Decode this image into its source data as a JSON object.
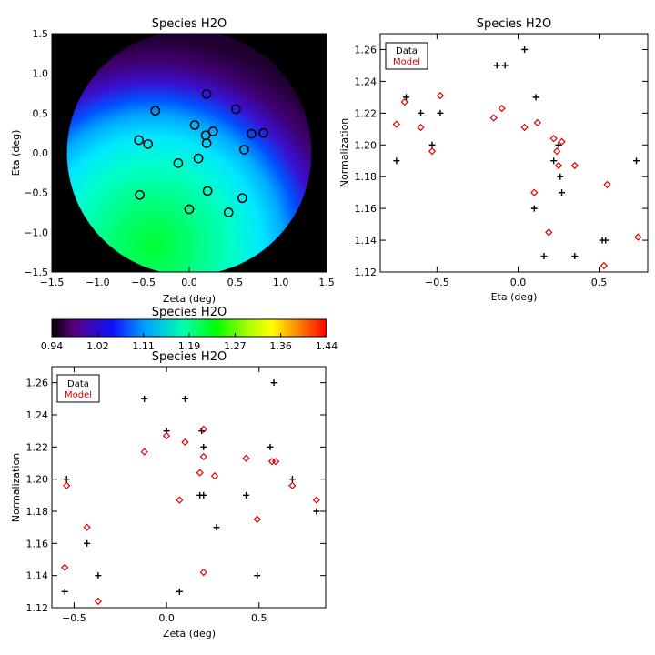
{
  "chart_data": [
    {
      "id": "map",
      "type": "heatmap",
      "title": "Species H2O",
      "xlabel": "Zeta (deg)",
      "ylabel": "Eta (deg)",
      "xlim": [
        -1.5,
        1.5
      ],
      "ylim": [
        -1.5,
        1.5
      ],
      "xticks": [
        -1.5,
        -1.0,
        -0.5,
        0.0,
        0.5,
        1.0,
        1.5
      ],
      "xtick_labels": [
        "−1.5",
        "−1.0",
        "−0.5",
        "0.0",
        "0.5",
        "1.0",
        "1.5"
      ],
      "yticks": [
        -1.5,
        -1.0,
        -0.5,
        0.0,
        0.5,
        1.0,
        1.5
      ],
      "ytick_labels": [
        "−1.5",
        "−1.0",
        "−0.5",
        "0.0",
        "0.5",
        "1.0",
        "1.5"
      ],
      "field_circle_radius": 1.43,
      "points": [
        {
          "x": 0.19,
          "y": 0.74
        },
        {
          "x": -0.37,
          "y": 0.53
        },
        {
          "x": 0.51,
          "y": 0.55
        },
        {
          "x": 0.06,
          "y": 0.35
        },
        {
          "x": 0.26,
          "y": 0.27
        },
        {
          "x": 0.18,
          "y": 0.22
        },
        {
          "x": 0.68,
          "y": 0.24
        },
        {
          "x": 0.81,
          "y": 0.25
        },
        {
          "x": -0.55,
          "y": 0.16
        },
        {
          "x": -0.45,
          "y": 0.11
        },
        {
          "x": 0.19,
          "y": 0.12
        },
        {
          "x": 0.6,
          "y": 0.04
        },
        {
          "x": 0.1,
          "y": -0.07
        },
        {
          "x": -0.12,
          "y": -0.13
        },
        {
          "x": -0.54,
          "y": -0.53
        },
        {
          "x": 0.2,
          "y": -0.48
        },
        {
          "x": 0.58,
          "y": -0.57
        },
        {
          "x": 0.0,
          "y": -0.71
        },
        {
          "x": 0.43,
          "y": -0.75
        }
      ]
    },
    {
      "id": "colorbar",
      "type": "colorbar",
      "title": "Species H2O",
      "range": [
        0.94,
        1.44
      ],
      "tick_labels": [
        "0.94",
        "1.02",
        "1.11",
        "1.19",
        "1.27",
        "1.36",
        "1.44"
      ]
    },
    {
      "id": "eta_plot",
      "type": "scatter",
      "title": "Species H2O",
      "xlabel": "Eta (deg)",
      "ylabel": "Normalization",
      "xlim": [
        -0.85,
        0.8
      ],
      "ylim": [
        1.12,
        1.27
      ],
      "xticks": [
        -0.5,
        0.0,
        0.5
      ],
      "xtick_labels": [
        "−0.5",
        "0.0",
        "0.5"
      ],
      "yticks": [
        1.12,
        1.14,
        1.16,
        1.18,
        1.2,
        1.22,
        1.24,
        1.26
      ],
      "ytick_labels": [
        "1.12",
        "1.14",
        "1.16",
        "1.18",
        "1.20",
        "1.22",
        "1.24",
        "1.26"
      ],
      "legend": [
        "Data",
        "Model"
      ],
      "data": [
        {
          "x": 0.04,
          "y": 1.26
        },
        {
          "x": -0.13,
          "y": 1.25
        },
        {
          "x": -0.08,
          "y": 1.25
        },
        {
          "x": -0.69,
          "y": 1.23
        },
        {
          "x": 0.11,
          "y": 1.23
        },
        {
          "x": -0.6,
          "y": 1.22
        },
        {
          "x": -0.48,
          "y": 1.22
        },
        {
          "x": 0.25,
          "y": 1.2
        },
        {
          "x": -0.53,
          "y": 1.2
        },
        {
          "x": 0.22,
          "y": 1.19
        },
        {
          "x": -0.75,
          "y": 1.19
        },
        {
          "x": 0.73,
          "y": 1.19
        },
        {
          "x": 0.26,
          "y": 1.18
        },
        {
          "x": 0.27,
          "y": 1.17
        },
        {
          "x": 0.1,
          "y": 1.16
        },
        {
          "x": 0.52,
          "y": 1.14
        },
        {
          "x": 0.54,
          "y": 1.14
        },
        {
          "x": 0.16,
          "y": 1.13
        },
        {
          "x": 0.35,
          "y": 1.13
        }
      ],
      "model": [
        {
          "x": -0.48,
          "y": 1.231
        },
        {
          "x": -0.7,
          "y": 1.227
        },
        {
          "x": -0.1,
          "y": 1.223
        },
        {
          "x": -0.15,
          "y": 1.217
        },
        {
          "x": 0.12,
          "y": 1.214
        },
        {
          "x": -0.75,
          "y": 1.213
        },
        {
          "x": 0.04,
          "y": 1.211
        },
        {
          "x": -0.6,
          "y": 1.211
        },
        {
          "x": 0.22,
          "y": 1.204
        },
        {
          "x": 0.27,
          "y": 1.202
        },
        {
          "x": 0.24,
          "y": 1.196
        },
        {
          "x": -0.53,
          "y": 1.196
        },
        {
          "x": 0.25,
          "y": 1.187
        },
        {
          "x": 0.35,
          "y": 1.187
        },
        {
          "x": 0.55,
          "y": 1.175
        },
        {
          "x": 0.1,
          "y": 1.17
        },
        {
          "x": 0.19,
          "y": 1.145
        },
        {
          "x": 0.74,
          "y": 1.142
        },
        {
          "x": 0.53,
          "y": 1.124
        }
      ]
    },
    {
      "id": "zeta_plot",
      "type": "scatter",
      "title": "Species H2O",
      "xlabel": "Zeta (deg)",
      "ylabel": "Normalization",
      "xlim": [
        -0.62,
        0.86
      ],
      "ylim": [
        1.12,
        1.27
      ],
      "xticks": [
        -0.5,
        0.0,
        0.5
      ],
      "xtick_labels": [
        "−0.5",
        "0.0",
        "0.5"
      ],
      "yticks": [
        1.12,
        1.14,
        1.16,
        1.18,
        1.2,
        1.22,
        1.24,
        1.26
      ],
      "ytick_labels": [
        "1.12",
        "1.14",
        "1.16",
        "1.18",
        "1.20",
        "1.22",
        "1.24",
        "1.26"
      ],
      "legend": [
        "Data",
        "Model"
      ],
      "data": [
        {
          "x": 0.58,
          "y": 1.26
        },
        {
          "x": -0.12,
          "y": 1.25
        },
        {
          "x": 0.1,
          "y": 1.25
        },
        {
          "x": 0.0,
          "y": 1.23
        },
        {
          "x": 0.19,
          "y": 1.23
        },
        {
          "x": 0.2,
          "y": 1.22
        },
        {
          "x": 0.56,
          "y": 1.22
        },
        {
          "x": -0.54,
          "y": 1.2
        },
        {
          "x": 0.68,
          "y": 1.2
        },
        {
          "x": 0.18,
          "y": 1.19
        },
        {
          "x": 0.2,
          "y": 1.19
        },
        {
          "x": 0.43,
          "y": 1.19
        },
        {
          "x": 0.81,
          "y": 1.18
        },
        {
          "x": 0.27,
          "y": 1.17
        },
        {
          "x": -0.43,
          "y": 1.16
        },
        {
          "x": -0.37,
          "y": 1.14
        },
        {
          "x": 0.49,
          "y": 1.14
        },
        {
          "x": -0.55,
          "y": 1.13
        },
        {
          "x": 0.07,
          "y": 1.13
        }
      ],
      "model": [
        {
          "x": 0.2,
          "y": 1.231
        },
        {
          "x": 0.0,
          "y": 1.227
        },
        {
          "x": 0.1,
          "y": 1.223
        },
        {
          "x": -0.12,
          "y": 1.217
        },
        {
          "x": 0.2,
          "y": 1.214
        },
        {
          "x": 0.43,
          "y": 1.213
        },
        {
          "x": 0.57,
          "y": 1.211
        },
        {
          "x": 0.59,
          "y": 1.211
        },
        {
          "x": 0.18,
          "y": 1.204
        },
        {
          "x": 0.26,
          "y": 1.202
        },
        {
          "x": -0.54,
          "y": 1.196
        },
        {
          "x": 0.68,
          "y": 1.196
        },
        {
          "x": 0.07,
          "y": 1.187
        },
        {
          "x": 0.81,
          "y": 1.187
        },
        {
          "x": 0.49,
          "y": 1.175
        },
        {
          "x": -0.43,
          "y": 1.17
        },
        {
          "x": -0.55,
          "y": 1.145
        },
        {
          "x": 0.2,
          "y": 1.142
        },
        {
          "x": -0.37,
          "y": 1.124
        }
      ]
    }
  ]
}
